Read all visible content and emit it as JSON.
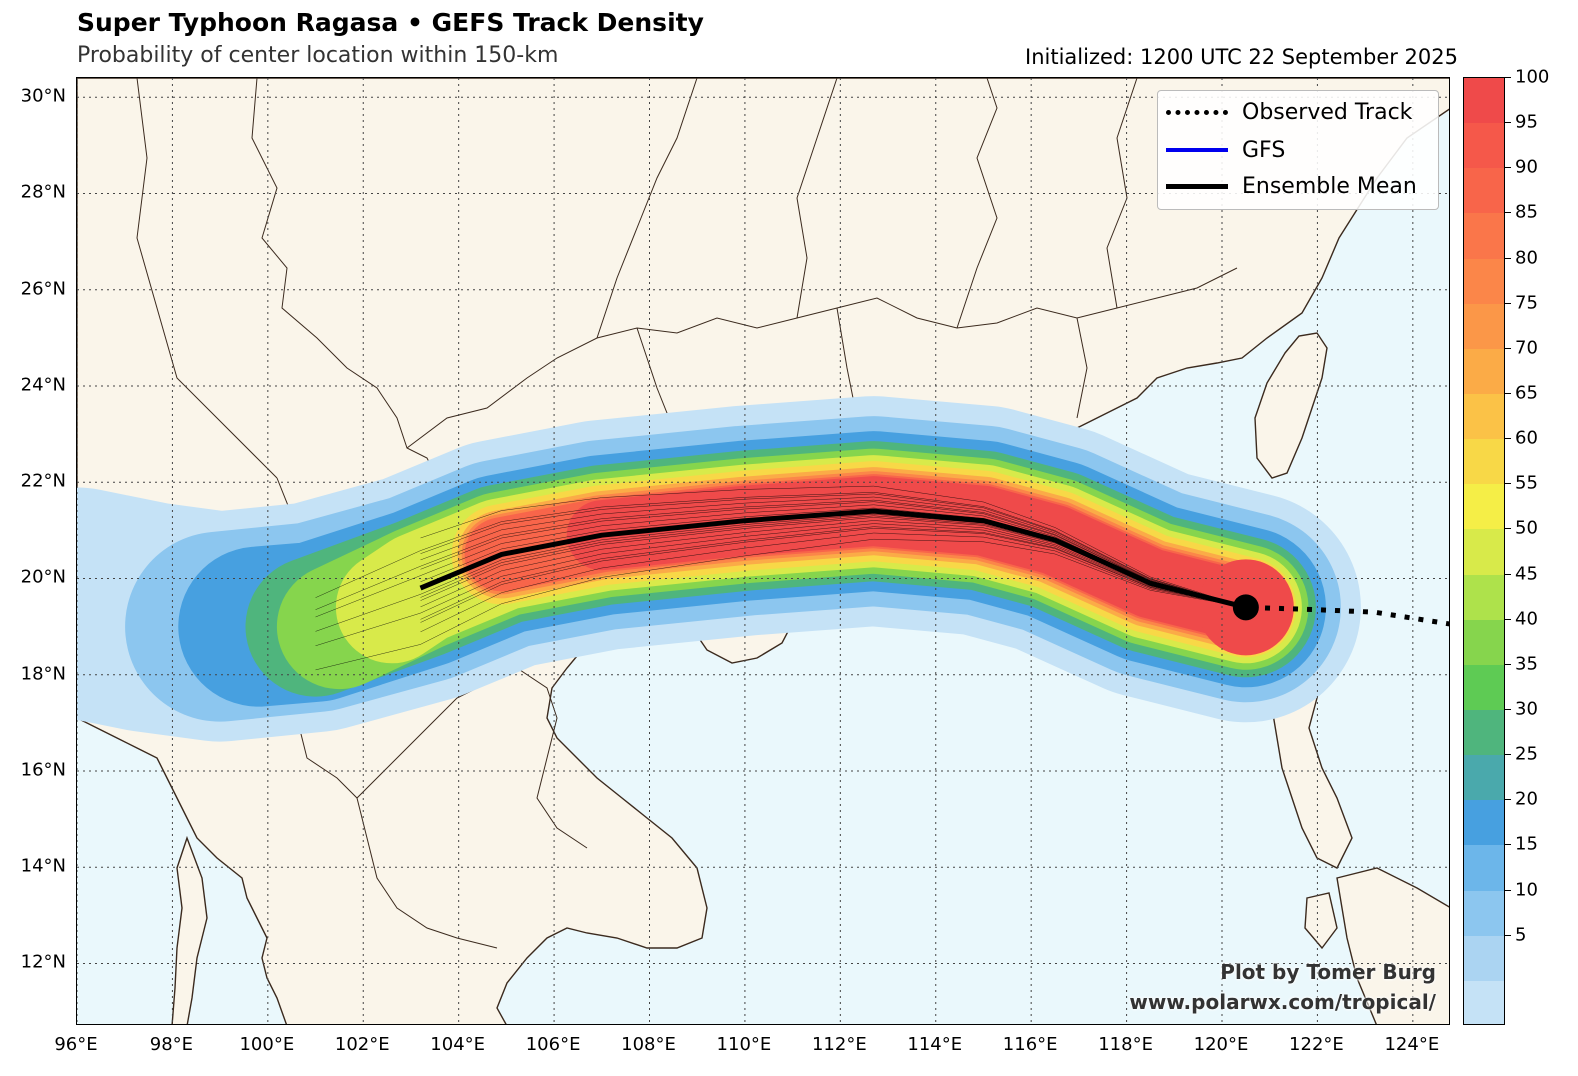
{
  "header": {
    "title": "Super Typhoon Ragasa • GEFS Track Density",
    "subtitle": "Probability of center location within 150-km",
    "initialized": "Initialized: 1200 UTC 22 September 2025"
  },
  "axes": {
    "lat_labels": [
      "30°N",
      "28°N",
      "26°N",
      "24°N",
      "22°N",
      "20°N",
      "18°N",
      "16°N",
      "14°N",
      "12°N"
    ],
    "lon_labels": [
      "96°E",
      "98°E",
      "100°E",
      "102°E",
      "104°E",
      "106°E",
      "108°E",
      "110°E",
      "112°E",
      "114°E",
      "116°E",
      "118°E",
      "120°E",
      "122°E",
      "124°E"
    ],
    "lat_values": [
      30,
      28,
      26,
      24,
      22,
      20,
      18,
      16,
      14,
      12
    ],
    "lon_values": [
      96,
      98,
      100,
      102,
      104,
      106,
      108,
      110,
      112,
      114,
      116,
      118,
      120,
      122,
      124
    ],
    "lon_range": [
      96,
      124.8
    ],
    "lat_range": [
      10.7,
      30.4
    ]
  },
  "legend": {
    "observed": "Observed Track",
    "gfs": "GFS",
    "mean": "Ensemble Mean"
  },
  "colorbar": {
    "labels": [
      "100",
      "95",
      "90",
      "85",
      "80",
      "75",
      "70",
      "65",
      "60",
      "55",
      "50",
      "45",
      "40",
      "35",
      "30",
      "25",
      "20",
      "15",
      "10",
      "5"
    ],
    "colors": [
      "#ef4a4a",
      "#f5584a",
      "#f8654a",
      "#fa764a",
      "#fb8649",
      "#fb9748",
      "#fbab47",
      "#fbc247",
      "#f8d847",
      "#f5ee47",
      "#d8ea4a",
      "#aee24b",
      "#86d54d",
      "#5ecb54",
      "#4fb57d",
      "#4aa9ac",
      "#47a0e0",
      "#6cb6ea",
      "#8cc6ef",
      "#abd4f2",
      "#c5e2f6"
    ]
  },
  "credits": {
    "line1": "Plot by Tomer Burg",
    "line2": "www.polarwx.com/tropical/"
  },
  "colors": {
    "land": "#faf5ea",
    "ocean": "#eaf8fc",
    "coast": "#3b2a1e",
    "mean_track": "#000000",
    "gfs": "#0000ee"
  },
  "tracks": {
    "ensemble_mean": [
      [
        120.5,
        19.4
      ],
      [
        118.5,
        19.9
      ],
      [
        116.5,
        20.8
      ],
      [
        115,
        21.2
      ],
      [
        112.7,
        21.4
      ],
      [
        110,
        21.2
      ],
      [
        107,
        20.9
      ],
      [
        104.9,
        20.5
      ],
      [
        103.2,
        19.8
      ]
    ],
    "observed": [
      [
        124.8,
        19.05
      ],
      [
        123.2,
        19.3
      ],
      [
        122,
        19.35
      ],
      [
        120.5,
        19.4
      ]
    ],
    "current_position": [
      120.5,
      19.4
    ]
  }
}
